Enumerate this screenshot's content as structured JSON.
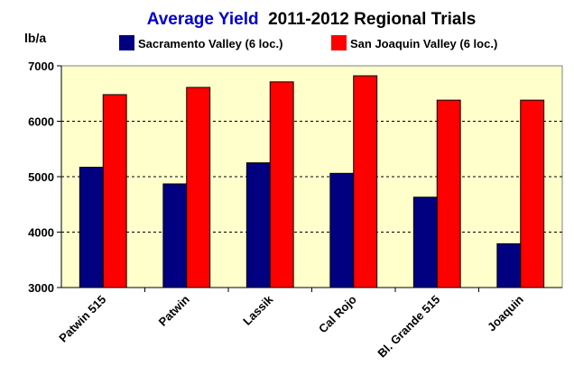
{
  "chart_data": {
    "type": "bar",
    "title_highlight": "Average Yield",
    "title_rest": "2011-2012 Regional Trials",
    "ylabel": "lb/a",
    "xlabel": "",
    "ylim": [
      3000,
      7000
    ],
    "yticks": [
      "3000",
      "4000",
      "5000",
      "6000",
      "7000"
    ],
    "grid": true,
    "legend_position": "top",
    "plot_background": "#ffffcc",
    "categories": [
      "Patwin 515",
      "Patwin",
      "Lassik",
      "Cal Rojo",
      "Bl. Grande 515",
      "Joaquin"
    ],
    "series": [
      {
        "name": "Sacramento Valley (6 loc.)",
        "color": "#000080",
        "values": [
          5170,
          4870,
          5250,
          5060,
          4630,
          3790
        ]
      },
      {
        "name": "San Joaquin Valley (6 loc.)",
        "color": "#ff0000",
        "values": [
          6480,
          6610,
          6710,
          6820,
          6380,
          6380
        ]
      }
    ]
  }
}
